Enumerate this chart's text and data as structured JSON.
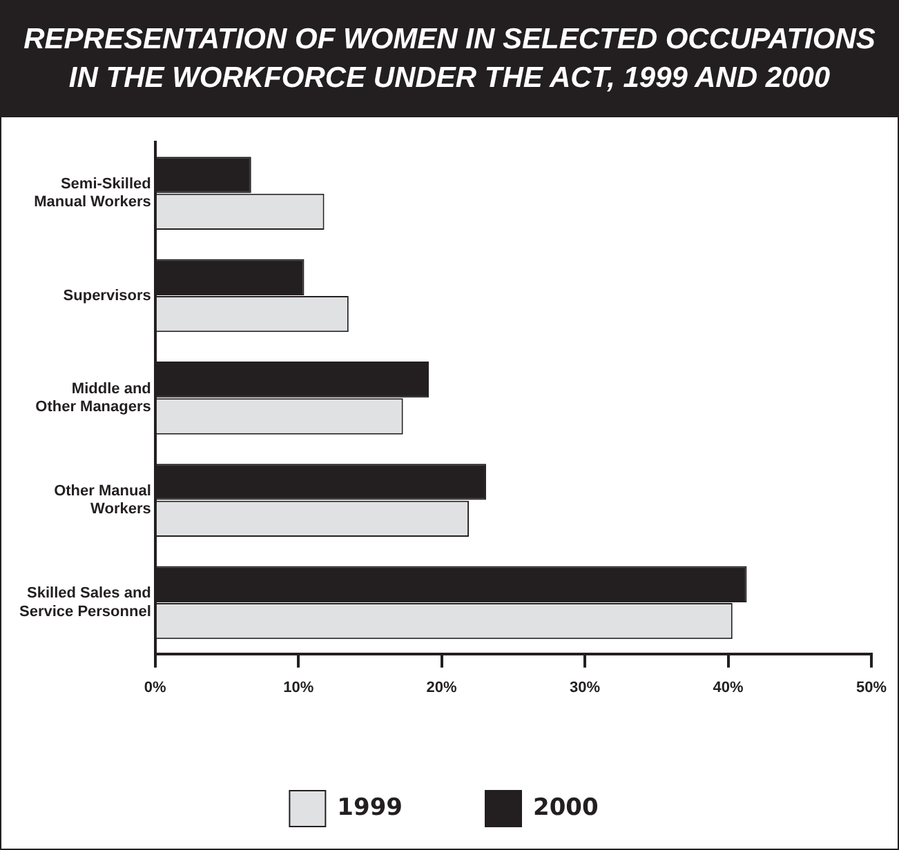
{
  "chart_data": {
    "type": "bar",
    "orientation": "horizontal",
    "title": "REPRESENTATION OF WOMEN IN SELECTED OCCUPATIONS IN THE WORKFORCE UNDER THE ACT, 1999 AND 2000",
    "categories": [
      "Semi-Skilled Manual Workers",
      "Supervisors",
      "Middle and Other Managers",
      "Other Manual Workers",
      "Skilled Sales and Service Personnel"
    ],
    "series": [
      {
        "name": "1999",
        "color": "#e0e1e3",
        "values": [
          11.8,
          13.5,
          17.3,
          21.9,
          40.3
        ]
      },
      {
        "name": "2000",
        "color": "#231f20",
        "values": [
          6.7,
          10.4,
          19.1,
          23.1,
          41.3
        ]
      }
    ],
    "xlim": [
      0,
      50
    ],
    "xticks": [
      {
        "value": 0,
        "label": "0%"
      },
      {
        "value": 10,
        "label": "10%"
      },
      {
        "value": 20,
        "label": "20%"
      },
      {
        "value": 30,
        "label": "30%"
      },
      {
        "value": 40,
        "label": "40%"
      },
      {
        "value": 50,
        "label": "50%"
      }
    ],
    "grid": false,
    "legend": "bottom"
  }
}
